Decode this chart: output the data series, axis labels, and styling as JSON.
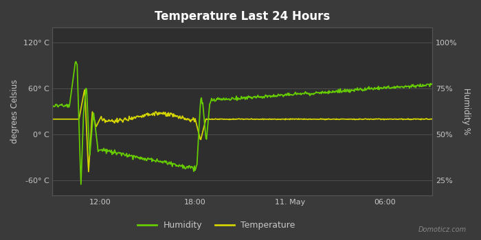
{
  "title": "Temperature Last 24 Hours",
  "background_color": "#3a3a3a",
  "plot_bg_color": "#2e2e2e",
  "grid_color": "#555555",
  "text_color": "#c8c8c8",
  "ylabel_left": "degrees Celsius",
  "ylabel_right": "Humidity %",
  "yticks_left": [
    -60,
    0,
    60,
    120
  ],
  "ytick_labels_left": [
    "-60° C",
    "0° C",
    "60° C",
    "120° C"
  ],
  "yticks_right_vals": [
    -60,
    0,
    60,
    120
  ],
  "ytick_labels_right": [
    "25%",
    "50%",
    "75%",
    "100%"
  ],
  "ylim": [
    -80,
    140
  ],
  "xtick_labels": [
    "12:00",
    "18:00",
    "11. May",
    "06:00"
  ],
  "xtick_pos": [
    0.125,
    0.375,
    0.625,
    0.875
  ],
  "temp_color": "#d4d400",
  "humidity_color": "#66cc00",
  "legend_humidity": "Humidity",
  "legend_temperature": "Temperature",
  "watermark": "Domoticz.com"
}
